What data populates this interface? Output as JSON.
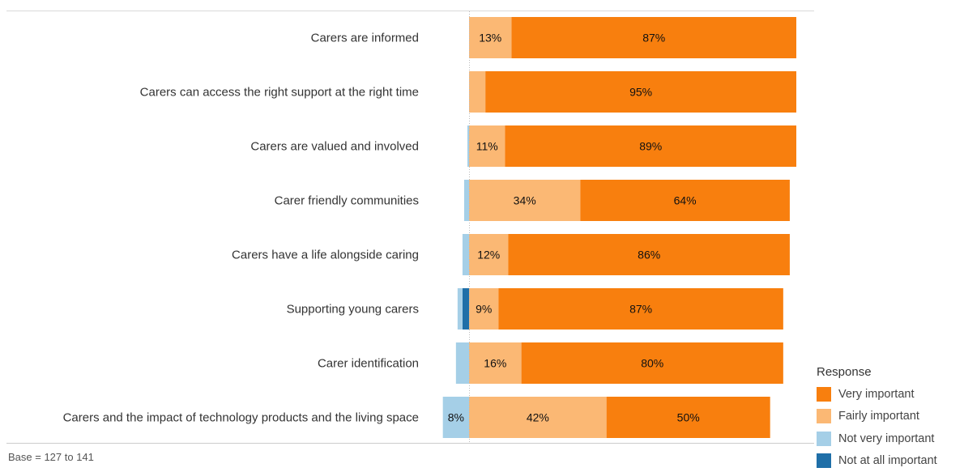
{
  "chart_data": {
    "type": "bar",
    "orientation": "horizontal",
    "stacked": "diverging",
    "categories": [
      "Carers are informed",
      "Carers can access the right support at the right time",
      "Carers are valued and involved",
      "Carer friendly communities",
      "Carers have a life alongside caring",
      "Supporting young carers",
      "Carer identification",
      "Carers and the impact of technology products and the living space"
    ],
    "series": [
      {
        "name": "Very important",
        "color": "#f87f0e",
        "side": "positive",
        "values": [
          87,
          95,
          89,
          64,
          86,
          87,
          80,
          50
        ],
        "labels": [
          "87%",
          "95%",
          "89%",
          "64%",
          "86%",
          "87%",
          "80%",
          "50%"
        ]
      },
      {
        "name": "Fairly important",
        "color": "#fbb874",
        "side": "positive",
        "values": [
          13,
          5,
          11,
          34,
          12,
          9,
          16,
          42
        ],
        "labels": [
          "13%",
          "",
          "11%",
          "34%",
          "12%",
          "9%",
          "16%",
          "42%"
        ]
      },
      {
        "name": "Not very important",
        "color": "#a5cfe7",
        "side": "negative",
        "values": [
          0,
          0,
          0.5,
          1.5,
          2,
          1.5,
          4,
          8
        ],
        "labels": [
          "",
          "",
          "",
          "",
          "",
          "",
          "",
          "8%"
        ]
      },
      {
        "name": "Not at all important",
        "color": "#1f6fa8",
        "side": "negative",
        "values": [
          0,
          0,
          0,
          0,
          0,
          2,
          0,
          0
        ],
        "labels": [
          "",
          "",
          "",
          "",
          "",
          "",
          "",
          ""
        ]
      }
    ],
    "legend_title": "Response",
    "legend_position": "right-bottom",
    "xlim": [
      -8.5,
      100
    ],
    "grid": false,
    "note": "Base = 127 to 141"
  }
}
